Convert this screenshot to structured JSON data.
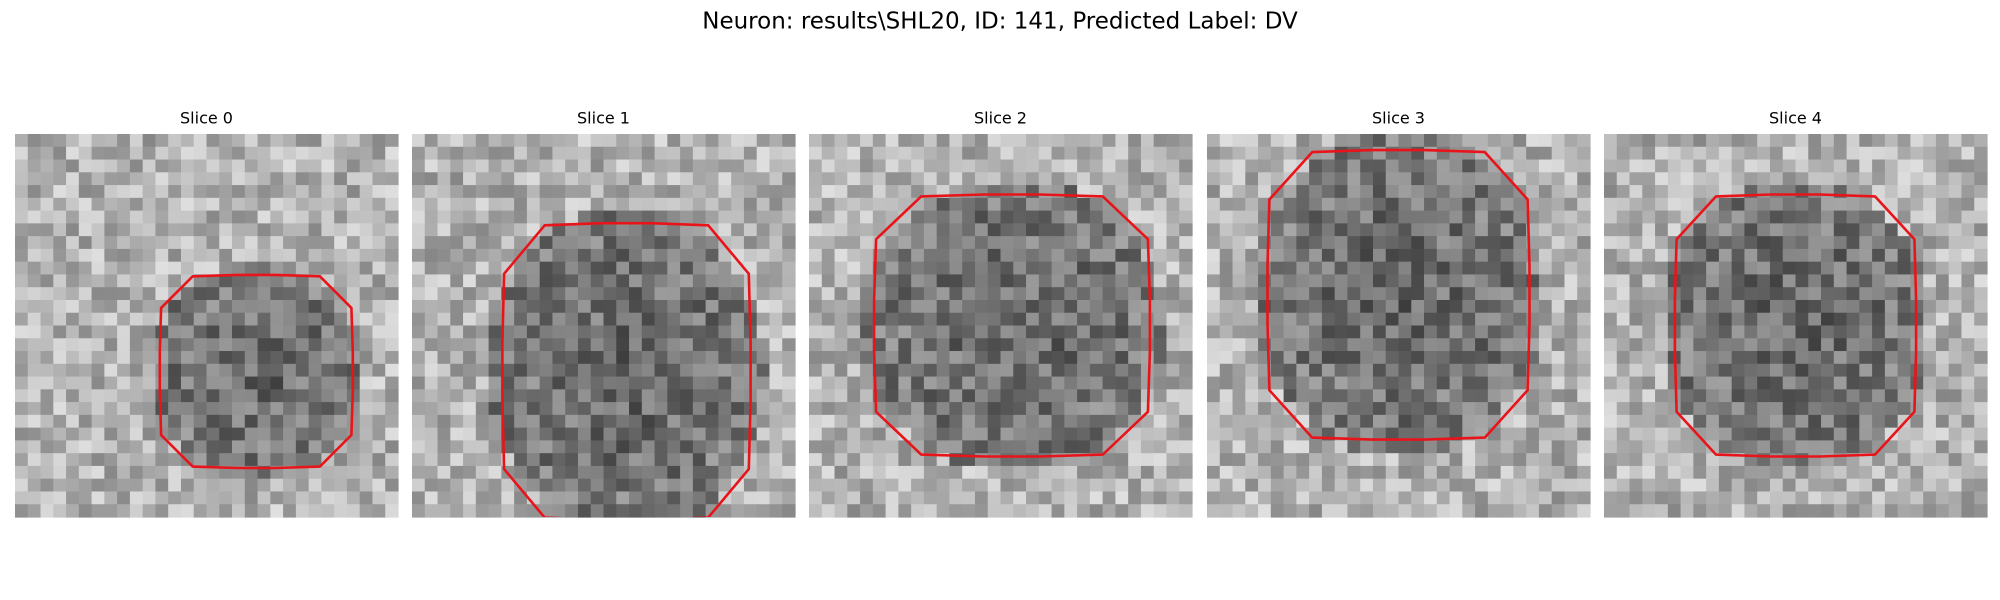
{
  "figure": {
    "title": "Neuron: results\\SHL20, ID: 141, Predicted Label: DV",
    "panels": [
      {
        "title": "Slice 0"
      },
      {
        "title": "Slice 1"
      },
      {
        "title": "Slice 2"
      },
      {
        "title": "Slice 3"
      },
      {
        "title": "Slice 4"
      }
    ]
  }
}
